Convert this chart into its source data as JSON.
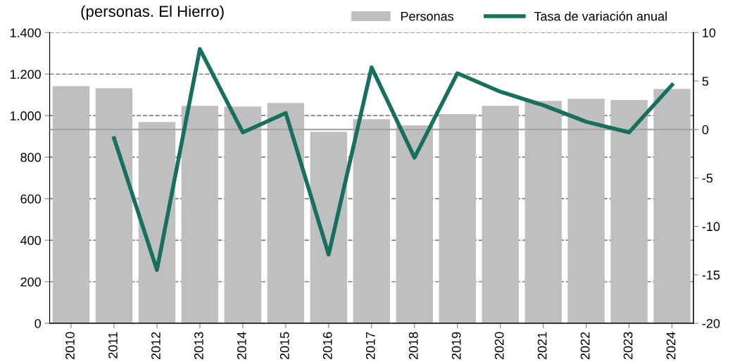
{
  "chart_data": {
    "type": "bar",
    "title": "(personas. El Hierro)",
    "categories": [
      "2010",
      "2011",
      "2012",
      "2013",
      "2014",
      "2015",
      "2016",
      "2017",
      "2018",
      "2019",
      "2020",
      "2021",
      "2022",
      "2023",
      "2024"
    ],
    "series": [
      {
        "name": "Personas",
        "color": "#bfbfbf",
        "values": [
          1142,
          1132,
          969,
          1047,
          1044,
          1061,
          922,
          983,
          953,
          1007,
          1047,
          1071,
          1081,
          1075,
          1129
        ]
      },
      {
        "name": "Tasa de variación anual",
        "type": "line",
        "axis": "y2",
        "color": "#17705e",
        "values": [
          null,
          -0.9,
          -14.5,
          8.3,
          -0.3,
          1.7,
          -12.9,
          6.4,
          -2.9,
          5.8,
          3.9,
          2.5,
          0.8,
          -0.3,
          4.6
        ]
      }
    ],
    "ylim": [
      0,
      1400
    ],
    "yticks": [
      {
        "value": 0,
        "label": "0"
      },
      {
        "value": 200,
        "label": "200"
      },
      {
        "value": 400,
        "label": "400"
      },
      {
        "value": 600,
        "label": "600"
      },
      {
        "value": 800,
        "label": "800"
      },
      {
        "value": 1000,
        "label": "1.000"
      },
      {
        "value": 1200,
        "label": "1.200"
      },
      {
        "value": 1400,
        "label": "1.400"
      }
    ],
    "y2lim": [
      -20,
      10
    ],
    "y2ticks": [
      -20,
      -15,
      -10,
      -5,
      0,
      5,
      10
    ],
    "ref_lines": [
      {
        "axis": "y2",
        "value": 0,
        "color": "#a6a6a6",
        "line_style": "solid"
      }
    ],
    "grid": "y",
    "legend": "top right",
    "marker": "none",
    "line_style": "solid"
  }
}
